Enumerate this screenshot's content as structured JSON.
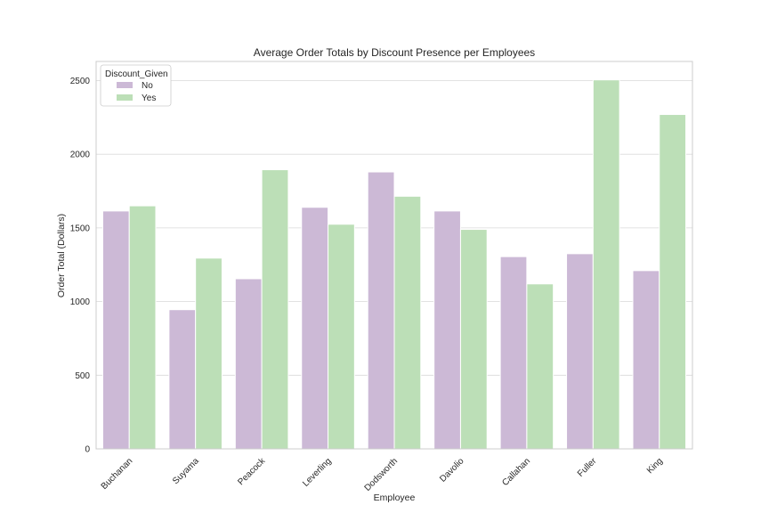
{
  "chart_data": {
    "type": "bar",
    "title": "Average Order Totals by Discount Presence per Employees",
    "xlabel": "Employee",
    "ylabel": "Order Total (Dollars)",
    "ylim": [
      0,
      2630
    ],
    "yticks": [
      0,
      500,
      1000,
      1500,
      2000,
      2500
    ],
    "grid": true,
    "legend": {
      "title": "Discount_Given",
      "placement": "top-left"
    },
    "categories": [
      "Buchanan",
      "Suyama",
      "Peacock",
      "Leverling",
      "Dodsworth",
      "Davolio",
      "Callahan",
      "Fuller",
      "King"
    ],
    "series": [
      {
        "name": "No",
        "color": "#ccb9d6",
        "values": [
          1615,
          945,
          1155,
          1640,
          1880,
          1615,
          1305,
          1325,
          1210
        ]
      },
      {
        "name": "Yes",
        "color": "#bcdfb7",
        "values": [
          1650,
          1295,
          1895,
          1525,
          1715,
          1490,
          1120,
          2505,
          2270
        ]
      }
    ]
  }
}
